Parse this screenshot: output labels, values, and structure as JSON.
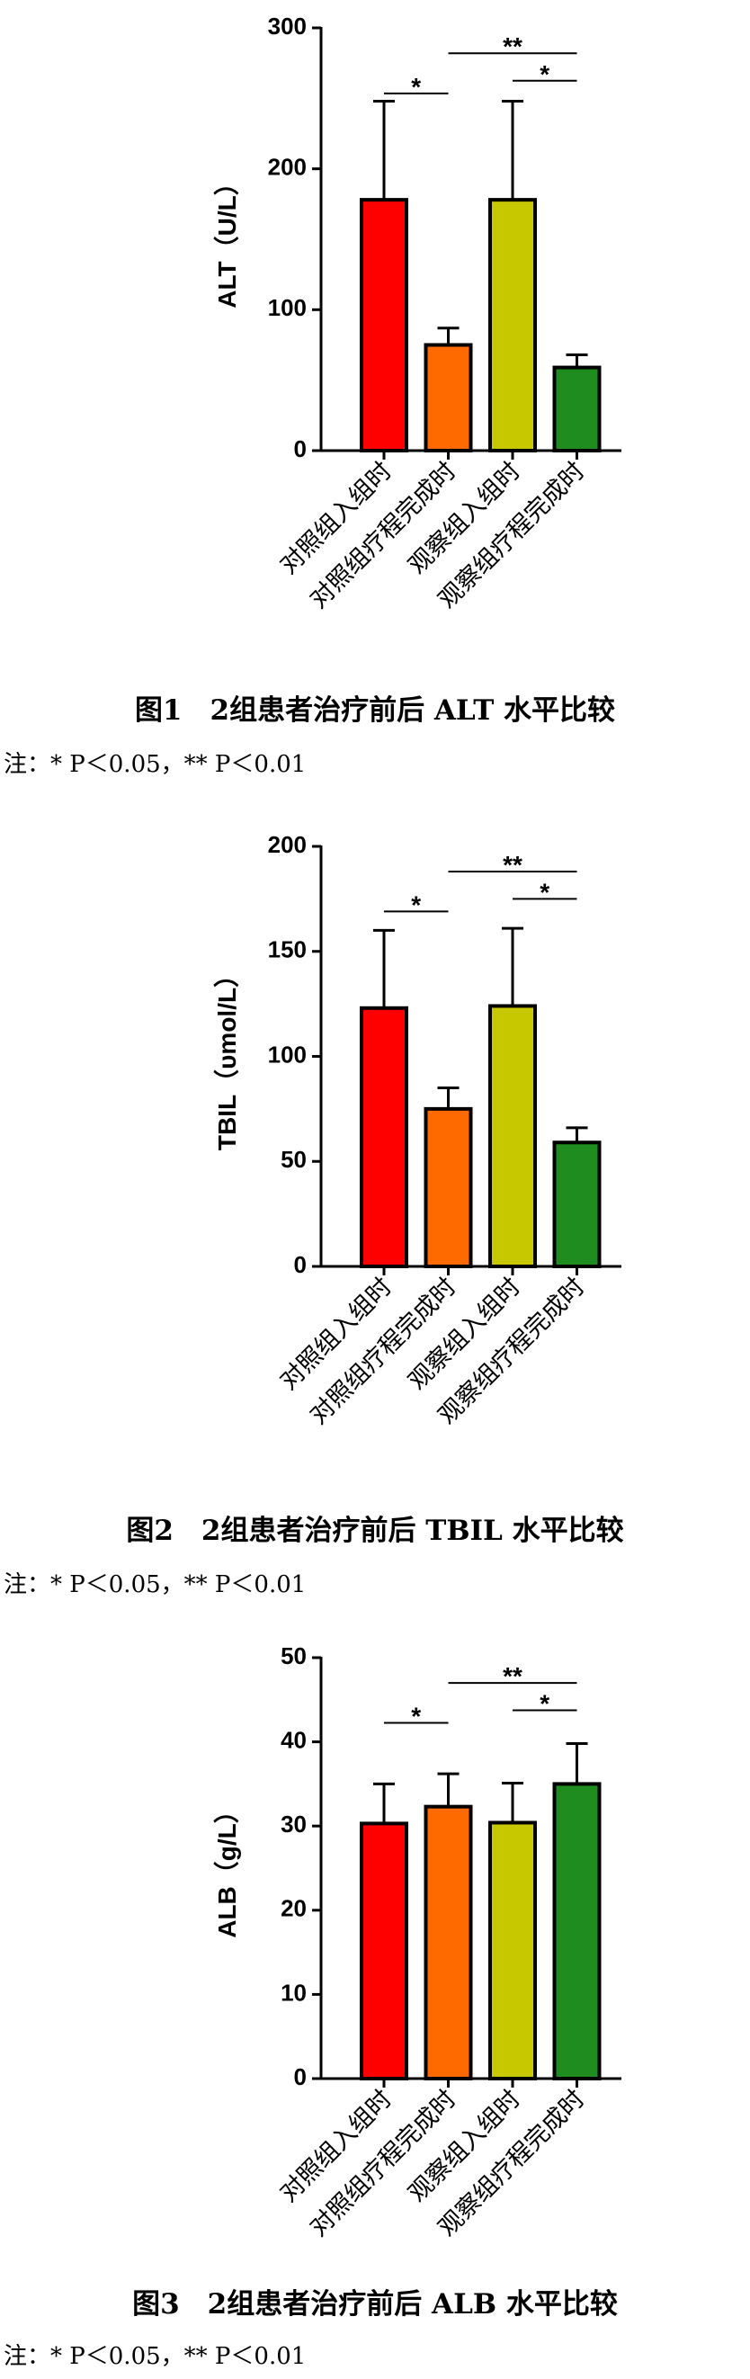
{
  "chart_data": [
    {
      "type": "bar",
      "ylabel": "ALT（U/L）",
      "categories": [
        "对照组入组时",
        "对照组疗程完成时",
        "观察组入组时",
        "观察组疗程完成时"
      ],
      "values": [
        178,
        75,
        178,
        59
      ],
      "errors": [
        70,
        12,
        70,
        9
      ],
      "colors": [
        "#ff0000",
        "#ff6a00",
        "#c8c800",
        "#1e8c1e"
      ],
      "ylim": [
        0,
        300
      ],
      "yticks": [
        0,
        100,
        200,
        300
      ],
      "annotations": [
        "*",
        "**",
        "*"
      ],
      "caption": "图1　2组患者治疗前后 ALT 水平比较",
      "note": "注：* P＜0.05，** P＜0.01"
    },
    {
      "type": "bar",
      "ylabel": "TBIL（υmol/L）",
      "categories": [
        "对照组入组时",
        "对照组疗程完成时",
        "观察组入组时",
        "观察组疗程完成时"
      ],
      "values": [
        123,
        75,
        124,
        59
      ],
      "errors": [
        37,
        10,
        37,
        7
      ],
      "colors": [
        "#ff0000",
        "#ff6a00",
        "#c8c800",
        "#1e8c1e"
      ],
      "ylim": [
        0,
        200
      ],
      "yticks": [
        0,
        50,
        100,
        150,
        200
      ],
      "annotations": [
        "*",
        "**",
        "*"
      ],
      "caption": "图2　2组患者治疗前后 TBIL 水平比较",
      "note": "注：* P＜0.05，** P＜0.01"
    },
    {
      "type": "bar",
      "ylabel": "ALB（g/L）",
      "categories": [
        "对照组入组时",
        "对照组疗程完成时",
        "观察组入组时",
        "观察组疗程完成时"
      ],
      "values": [
        30.3,
        32.3,
        30.4,
        35.0
      ],
      "errors": [
        4.7,
        3.9,
        4.7,
        4.8
      ],
      "colors": [
        "#ff0000",
        "#ff6a00",
        "#c8c800",
        "#1e8c1e"
      ],
      "ylim": [
        0,
        50
      ],
      "yticks": [
        0,
        10,
        20,
        30,
        40,
        50
      ],
      "annotations": [
        "*",
        "**",
        "*"
      ],
      "caption": "图3　2组患者治疗前后 ALB 水平比较",
      "note": "注：* P＜0.05，** P＜0.01"
    }
  ]
}
